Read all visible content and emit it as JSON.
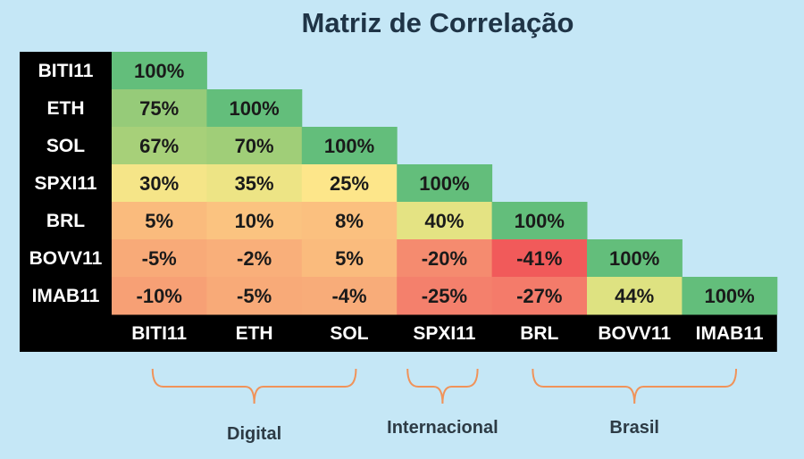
{
  "chart_data": {
    "type": "heatmap",
    "title": "Matriz de Correlação",
    "labels": [
      "BITI11",
      "ETH",
      "SOL",
      "SPXI11",
      "BRL",
      "BOVV11",
      "IMAB11"
    ],
    "values": [
      [
        100
      ],
      [
        75,
        100
      ],
      [
        67,
        70,
        100
      ],
      [
        30,
        35,
        25,
        100
      ],
      [
        5,
        10,
        8,
        40,
        100
      ],
      [
        -5,
        -2,
        5,
        -20,
        -41,
        100
      ],
      [
        -10,
        -5,
        -4,
        -25,
        -27,
        44,
        100
      ]
    ],
    "value_format": "percent",
    "groups": [
      {
        "name": "Digital",
        "columns": [
          "BITI11",
          "ETH",
          "SOL"
        ]
      },
      {
        "name": "Internacional",
        "columns": [
          "SPXI11"
        ]
      },
      {
        "name": "Brasil",
        "columns": [
          "BRL",
          "BOVV11",
          "IMAB11"
        ]
      }
    ],
    "colors": {
      "background": "#c5e7f6",
      "label_background": "#000000",
      "bracket": "#f0935a"
    }
  }
}
